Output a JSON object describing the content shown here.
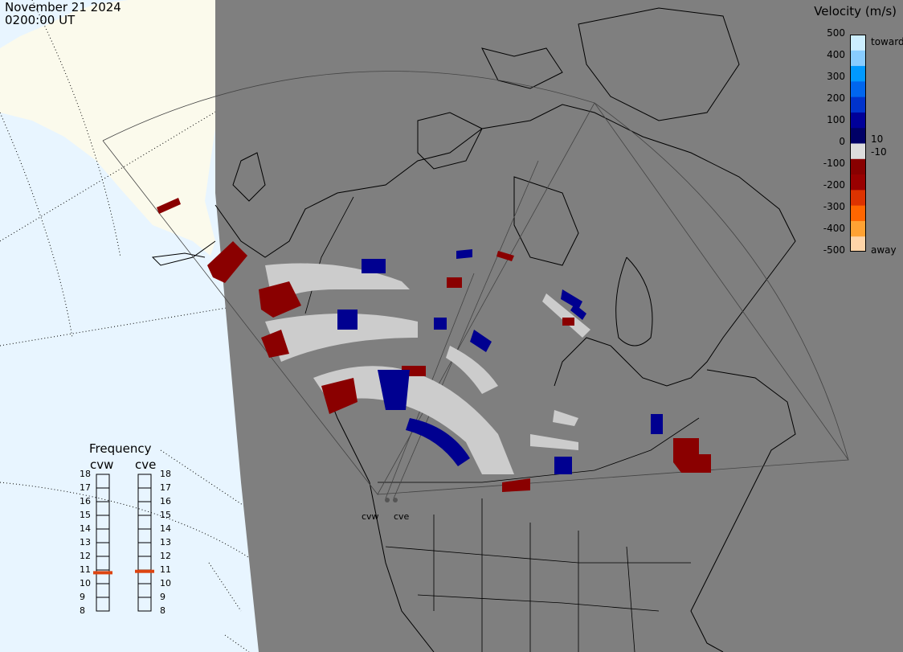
{
  "header": {
    "date": "November 21 2024",
    "time": "0200:00 UT"
  },
  "legend": {
    "title": "Velocity (m/s)",
    "ticks": [
      "500",
      "400",
      "300",
      "200",
      "100",
      "0",
      "-100",
      "-200",
      "-300",
      "-400",
      "-500"
    ],
    "right_labels": {
      "toward": "toward",
      "away": "away",
      "plus_small": "10",
      "minus_small": "-10"
    },
    "colors": [
      "#ffd5a8",
      "#ffa233",
      "#ff6600",
      "#dd3300",
      "#990000",
      "#880000",
      "#dddddd",
      "#000066",
      "#000099",
      "#0033cc",
      "#0066ee",
      "#0099ff",
      "#88ccff",
      "#cceeff"
    ]
  },
  "frequency": {
    "title": "Frequency",
    "radars": [
      {
        "name": "cvw",
        "value": 10.8
      },
      {
        "name": "cve",
        "value": 10.9
      }
    ],
    "scale": [
      "18",
      "17",
      "16",
      "15",
      "14",
      "13",
      "12",
      "11",
      "10",
      "9",
      "8"
    ],
    "marker_color": "#dd4411"
  },
  "sites": [
    {
      "name": "cvw"
    },
    {
      "name": "cve"
    }
  ],
  "map_colors": {
    "ocean_daylight": "#e8f5ff",
    "land_daylight": "#fbfaec",
    "night": "#7f7f7f",
    "ground_scatter": "#cccccc",
    "toward": "#000090",
    "away": "#8a0000"
  }
}
